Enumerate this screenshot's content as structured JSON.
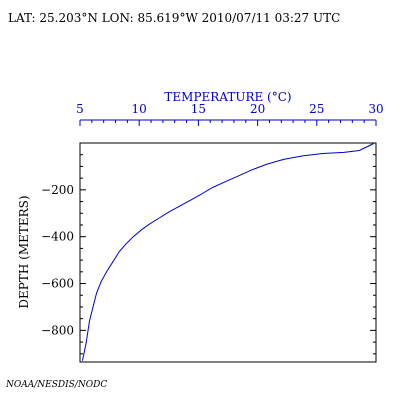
{
  "header": {
    "location": "LAT: 25.203°N LON: 85.619°W 2010/07/11 03:27 UTC"
  },
  "credit": "NOAA/NESDIS/NODC",
  "chart_data": {
    "type": "line",
    "title": "",
    "xlabel": "TEMPERATURE (°C)",
    "ylabel": "DEPTH (METERS)",
    "xlim": [
      5,
      30
    ],
    "ylim": [
      -935,
      0
    ],
    "x_ticks": [
      5,
      10,
      15,
      20,
      25,
      30
    ],
    "y_ticks": [
      -200,
      -400,
      -600,
      -800
    ],
    "grid": false,
    "colors": {
      "series": "#0000cc",
      "axis_top": "#0000cc",
      "axis": "#000000"
    },
    "series": [
      {
        "name": "",
        "x": [
          5.2,
          5.5,
          5.8,
          6.1,
          6.4,
          6.8,
          7.3,
          7.8,
          8.3,
          8.9,
          9.5,
          10.2,
          10.9,
          11.7,
          12.5,
          13.4,
          14.3,
          15.2,
          16.2,
          17.3,
          18.4,
          19.5,
          20.8,
          22.2,
          23.8,
          25.5,
          27.3,
          28.6,
          29.3,
          29.8
        ],
        "y": [
          -930,
          -860,
          -760,
          -700,
          -640,
          -590,
          -545,
          -505,
          -465,
          -430,
          -400,
          -370,
          -345,
          -320,
          -295,
          -270,
          -245,
          -220,
          -190,
          -165,
          -140,
          -115,
          -90,
          -70,
          -55,
          -45,
          -40,
          -32,
          -15,
          -2
        ]
      }
    ]
  }
}
